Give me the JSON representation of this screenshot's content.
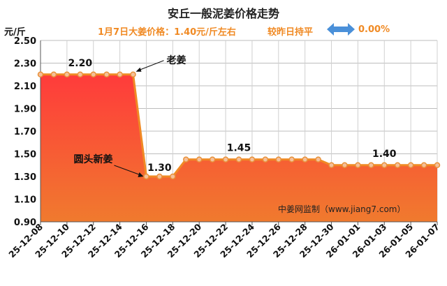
{
  "header": {
    "title": "安丘一般泥姜价格走势",
    "price_note": "1月7日大姜价格：1.40元/斤左右",
    "compare_text": "较昨日持平",
    "change_pct": "0.00%",
    "y_unit": "元/斤",
    "source": "中姜网监制（www.jiang7.com）",
    "arrow_icon": "double-arrow-icon"
  },
  "colors": {
    "accent": "#f08a24",
    "area_top": "#ff3b3b",
    "area_bottom": "#f07a2e",
    "arrow": "#4a90d9"
  },
  "chart_data": {
    "type": "area",
    "title": "安丘一般泥姜价格走势",
    "ylabel": "元/斤",
    "xlabel": "",
    "ylim": [
      0.9,
      2.5
    ],
    "yticks": [
      "0.90",
      "1.10",
      "1.30",
      "1.50",
      "1.70",
      "1.90",
      "2.10",
      "2.30",
      "2.50"
    ],
    "xticks": [
      "25-12-08",
      "25-12-10",
      "25-12-12",
      "25-12-14",
      "25-12-16",
      "25-12-18",
      "25-12-20",
      "25-12-22",
      "25-12-24",
      "25-12-26",
      "25-12-28",
      "25-12-30",
      "26-01-01",
      "26-01-03",
      "26-01-05",
      "26-01-07"
    ],
    "series": [
      {
        "name": "老姜",
        "x": [
          "25-12-08",
          "25-12-09",
          "25-12-10",
          "25-12-11",
          "25-12-12",
          "25-12-13",
          "25-12-14",
          "25-12-15",
          "25-12-16",
          "25-12-17",
          "25-12-18",
          "25-12-19",
          "25-12-20",
          "25-12-21",
          "25-12-22",
          "25-12-23",
          "25-12-24",
          "25-12-25",
          "25-12-26",
          "25-12-27",
          "25-12-28",
          "25-12-29",
          "25-12-30",
          "25-12-31",
          "26-01-01",
          "26-01-02",
          "26-01-03",
          "26-01-04",
          "26-01-05",
          "26-01-06",
          "26-01-07"
        ],
        "values": [
          2.2,
          2.2,
          2.2,
          2.2,
          2.2,
          2.2,
          2.2,
          2.2,
          1.3,
          1.3,
          1.3,
          1.45,
          1.45,
          1.45,
          1.45,
          1.45,
          1.45,
          1.45,
          1.45,
          1.45,
          1.45,
          1.45,
          1.4,
          1.4,
          1.4,
          1.4,
          1.4,
          1.4,
          1.4,
          1.4,
          1.4
        ]
      }
    ],
    "data_labels": [
      {
        "index": 3,
        "text": "2.20"
      },
      {
        "index": 9,
        "text": "1.30"
      },
      {
        "index": 15,
        "text": "1.45"
      },
      {
        "index": 26,
        "text": "1.40"
      }
    ],
    "annotations": [
      {
        "text": "老姜",
        "index": 7
      },
      {
        "text": "圆头新姜",
        "index": 8
      }
    ],
    "grid": true
  }
}
